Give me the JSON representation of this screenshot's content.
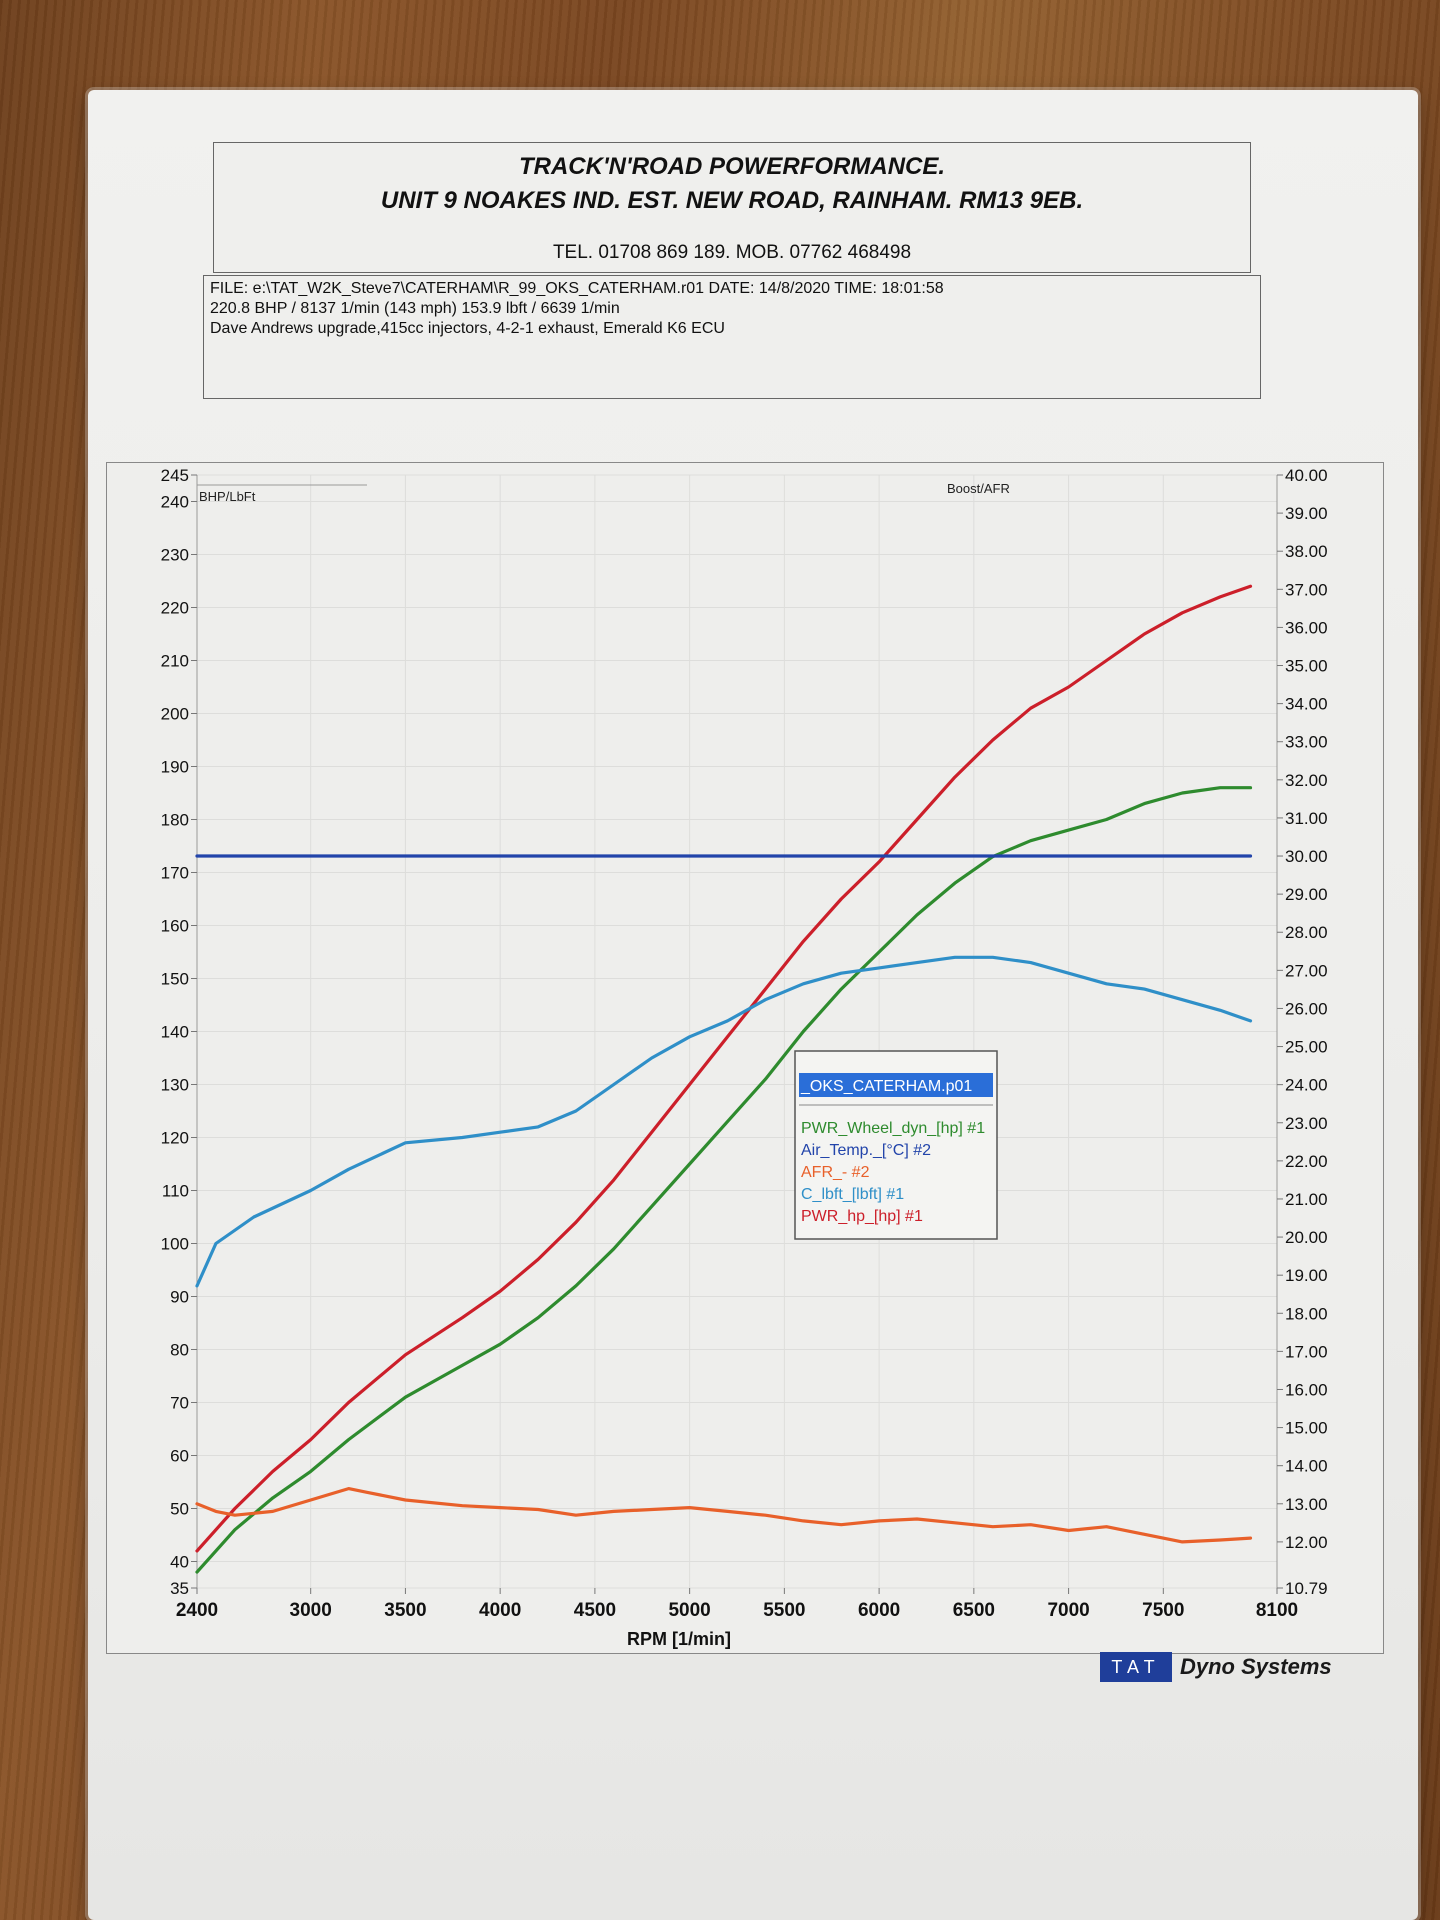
{
  "header": {
    "company": "TRACK'N'ROAD POWERFORMANCE.",
    "address": "UNIT 9 NOAKES IND. EST. NEW ROAD, RAINHAM. RM13 9EB.",
    "contact": "TEL. 01708 869 189. MOB. 07762 468498",
    "file_line": "FILE: e:\\TAT_W2K_Steve7\\CATERHAM\\R_99_OKS_CATERHAM.r01  DATE: 14/8/2020  TIME: 18:01:58",
    "peak_line": "220.8 BHP / 8137 1/min (143 mph)     153.9 lbft / 6639 1/min",
    "notes_line": "Dave Andrews upgrade,415cc injectors, 4-2-1 exhaust, Emerald K6 ECU"
  },
  "footer": {
    "brand_box": "TAT",
    "brand_text": "Dyno Systems"
  },
  "chart_data": {
    "type": "line",
    "title": "",
    "xlabel": "RPM  [1/min]",
    "ylabel_left": "BHP/LbFt",
    "ylabel_right": "Boost/AFR",
    "x_ticks": [
      2400,
      3000,
      3500,
      4000,
      4500,
      5000,
      5500,
      6000,
      6500,
      7000,
      7500,
      8100
    ],
    "x_range": [
      2400,
      8100
    ],
    "y_left_ticks": [
      35,
      40,
      50,
      60,
      70,
      80,
      90,
      100,
      110,
      120,
      130,
      140,
      150,
      160,
      170,
      180,
      190,
      200,
      210,
      220,
      230,
      240,
      245
    ],
    "y_left_range": [
      35,
      245
    ],
    "y_right_ticks": [
      "10.79",
      "12.00",
      "13.00",
      "14.00",
      "15.00",
      "16.00",
      "17.00",
      "18.00",
      "19.00",
      "20.00",
      "21.00",
      "22.00",
      "23.00",
      "24.00",
      "25.00",
      "26.00",
      "27.00",
      "28.00",
      "29.00",
      "30.00",
      "31.00",
      "32.00",
      "33.00",
      "34.00",
      "35.00",
      "36.00",
      "37.00",
      "38.00",
      "39.00",
      "40.00"
    ],
    "y_right_range": [
      10.79,
      40.0
    ],
    "grid": true,
    "legend": {
      "title": "_OKS_CATERHAM.p01",
      "placement": "lower-right",
      "entries": [
        {
          "label": "PWR_Wheel_dyn_[hp] #1",
          "color": "#2e8b2e"
        },
        {
          "label": "Air_Temp._[°C] #2",
          "color": "#2244aa"
        },
        {
          "label": "AFR_- #2",
          "color": "#e8602a"
        },
        {
          "label": "C_lbft_[lbft] #1",
          "color": "#2f8fc8"
        },
        {
          "label": "PWR_hp_[hp] #1",
          "color": "#cc1f2a"
        }
      ]
    },
    "series": [
      {
        "axis": "left",
        "color": "#cc1f2a",
        "x": [
          2400,
          2600,
          2800,
          3000,
          3200,
          3500,
          3800,
          4000,
          4200,
          4400,
          4600,
          4800,
          5000,
          5200,
          5400,
          5600,
          5800,
          6000,
          6200,
          6400,
          6600,
          6800,
          7000,
          7200,
          7400,
          7600,
          7800,
          7960
        ],
        "y": [
          42,
          50,
          57,
          63,
          70,
          79,
          86,
          91,
          97,
          104,
          112,
          121,
          130,
          139,
          148,
          157,
          165,
          172,
          180,
          188,
          195,
          201,
          205,
          210,
          215,
          219,
          222,
          224
        ]
      },
      {
        "axis": "left",
        "color": "#2e8b2e",
        "x": [
          2400,
          2600,
          2800,
          3000,
          3200,
          3500,
          3800,
          4000,
          4200,
          4400,
          4600,
          4800,
          5000,
          5200,
          5400,
          5600,
          5800,
          6000,
          6200,
          6400,
          6600,
          6800,
          7000,
          7200,
          7400,
          7600,
          7800,
          7960
        ],
        "y": [
          38,
          46,
          52,
          57,
          63,
          71,
          77,
          81,
          86,
          92,
          99,
          107,
          115,
          123,
          131,
          140,
          148,
          155,
          162,
          168,
          173,
          176,
          178,
          180,
          183,
          185,
          186,
          186
        ]
      },
      {
        "axis": "left",
        "color": "#2f8fc8",
        "x": [
          2400,
          2500,
          2700,
          3000,
          3200,
          3500,
          3800,
          4000,
          4200,
          4400,
          4600,
          4800,
          5000,
          5200,
          5400,
          5600,
          5800,
          6000,
          6200,
          6400,
          6600,
          6800,
          7000,
          7200,
          7400,
          7600,
          7800,
          7960
        ],
        "y": [
          92,
          100,
          105,
          110,
          114,
          119,
          120,
          121,
          122,
          125,
          130,
          135,
          139,
          142,
          146,
          149,
          151,
          152,
          153,
          154,
          154,
          153,
          151,
          149,
          148,
          146,
          144,
          142
        ]
      },
      {
        "axis": "right",
        "color": "#e8602a",
        "x": [
          2400,
          2500,
          2600,
          2800,
          3000,
          3200,
          3300,
          3500,
          3800,
          4000,
          4200,
          4400,
          4600,
          4800,
          5000,
          5200,
          5400,
          5600,
          5800,
          6000,
          6200,
          6400,
          6600,
          6800,
          7000,
          7200,
          7400,
          7600,
          7800,
          7960
        ],
        "y": [
          13.0,
          12.8,
          12.7,
          12.8,
          13.1,
          13.4,
          13.3,
          13.1,
          12.95,
          12.9,
          12.85,
          12.7,
          12.8,
          12.85,
          12.9,
          12.8,
          12.7,
          12.55,
          12.45,
          12.55,
          12.6,
          12.5,
          12.4,
          12.45,
          12.3,
          12.4,
          12.2,
          12.0,
          12.05,
          12.1
        ]
      },
      {
        "axis": "right",
        "color": "#2244aa",
        "x": [
          2400,
          7960
        ],
        "y": [
          30.0,
          30.0
        ]
      }
    ]
  }
}
